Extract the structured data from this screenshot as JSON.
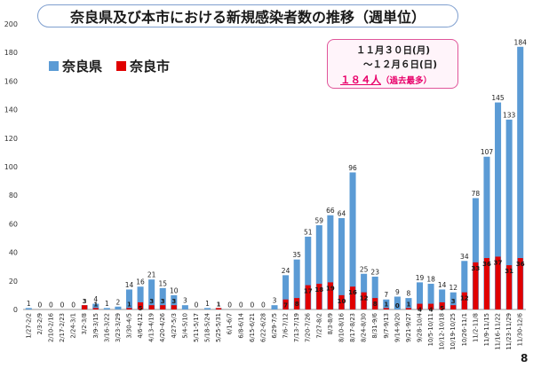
{
  "title": "奈良県及び本市における新規感染者数の推移（週単位）",
  "legend": {
    "series1_label": "奈良県",
    "series2_label": "奈良市",
    "series1_color": "#5b9bd5",
    "series2_color": "#e00000"
  },
  "callout": {
    "line1": "１１月３０日(月)",
    "line2": "～１２月６日(日)",
    "highlight": "１８４人",
    "note": "（過去最多）",
    "border_color": "#e0559a",
    "text_color": "#e8006a"
  },
  "page_number": "8",
  "chart_data": {
    "type": "bar",
    "ylim": [
      0,
      200
    ],
    "yticks": [
      0,
      20,
      40,
      60,
      80,
      100,
      120,
      140,
      160,
      180,
      200
    ],
    "grid": false,
    "legend_position": "top-left",
    "categories": [
      "1/27-2/2",
      "2/3-2/9",
      "2/10-2/16",
      "2/17-2/23",
      "2/24-3/1",
      "3/2-3/8",
      "3/9-3/15",
      "3/16-3/22",
      "3/23-3/29",
      "3/30-4/5",
      "4/6-4/12",
      "4/13-4/19",
      "4/20-4/26",
      "4/27-5/3",
      "5/4-5/10",
      "5/11-5/17",
      "5/18-5/24",
      "5/25-5/31",
      "6/1-6/7",
      "6/8-6/14",
      "6/15-6/21",
      "6/22-6/28",
      "6/29-7/5",
      "7/6-7/12",
      "7/13-7/19",
      "7/20-7/26",
      "7/27-8/2",
      "8/3-8/9",
      "8/10-8/16",
      "8/17-8/23",
      "8/24-8/30",
      "8/31-9/6",
      "9/7-9/13",
      "9/14-9/20",
      "9/21-9/27",
      "9/28-10/4",
      "10/5-10/11",
      "10/12-10/18",
      "10/19-10/25",
      "10/26-11/1",
      "11/2-11/8",
      "11/9-11/15",
      "11/16-11/22",
      "11/23-11/29",
      "11/30-12/6"
    ],
    "series": [
      {
        "name": "奈良県",
        "values": [
          1,
          0,
          0,
          0,
          0,
          3,
          4,
          1,
          2,
          14,
          16,
          21,
          15,
          10,
          3,
          0,
          1,
          1,
          0,
          0,
          0,
          0,
          3,
          24,
          35,
          51,
          59,
          66,
          64,
          96,
          25,
          23,
          7,
          9,
          8,
          19,
          18,
          14,
          12,
          34,
          78,
          107,
          145,
          133,
          184
        ]
      },
      {
        "name": "奈良市",
        "values": [
          null,
          null,
          null,
          null,
          null,
          3,
          1,
          null,
          null,
          1,
          5,
          3,
          3,
          3,
          null,
          null,
          null,
          1,
          null,
          null,
          null,
          null,
          null,
          7,
          8,
          17,
          18,
          19,
          10,
          16,
          12,
          8,
          1,
          0,
          1,
          4,
          4,
          5,
          3,
          12,
          33,
          36,
          37,
          31,
          36
        ]
      }
    ],
    "series1_labels_above": [
      "1",
      "0",
      "0",
      "0",
      "0",
      "",
      "4",
      "1",
      "2",
      "14",
      "16",
      "21",
      "15",
      "10",
      "3",
      "0",
      "1",
      "",
      "0",
      "0",
      "0",
      "0",
      "3",
      "24",
      "35",
      "51",
      "59",
      "66",
      "64",
      "96",
      "25",
      "23",
      "7",
      "9",
      "8",
      "19",
      "18",
      "14",
      "12",
      "34",
      "78",
      "107",
      "145",
      "133",
      "184"
    ]
  }
}
